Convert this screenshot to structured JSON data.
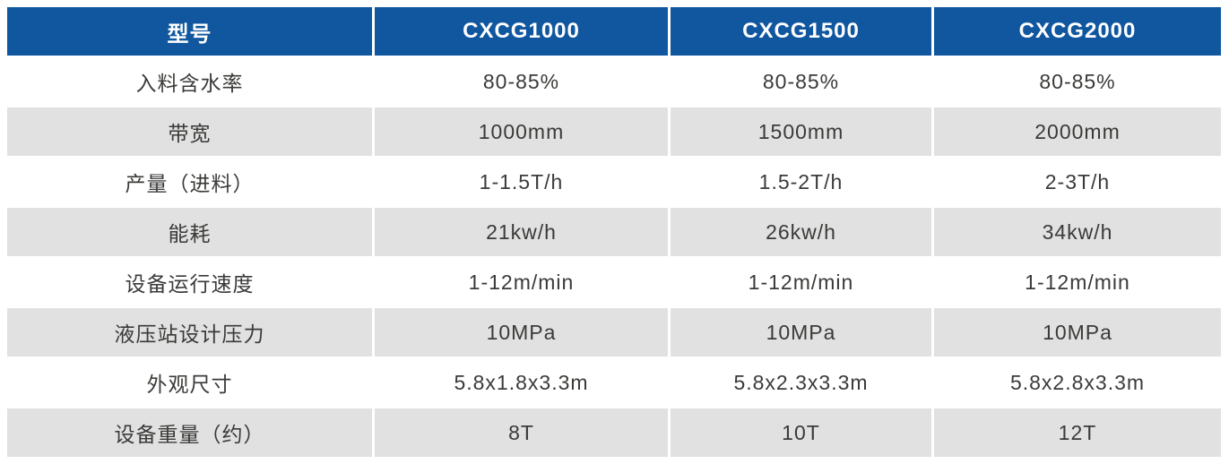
{
  "colors": {
    "header_bg": "#11579F",
    "alt_row_bg": "#E0E1E0",
    "body_text": "#3A3A38",
    "header_text": "#FFFFFF"
  },
  "table": {
    "columns": [
      "型号",
      "CXCG1000",
      "CXCG1500",
      "CXCG2000"
    ],
    "rows": [
      {
        "label": "入料含水率",
        "values": [
          "80-85%",
          "80-85%",
          "80-85%"
        ]
      },
      {
        "label": "带宽",
        "values": [
          "1000mm",
          "1500mm",
          "2000mm"
        ]
      },
      {
        "label": "产量（进料）",
        "values": [
          "1-1.5T/h",
          "1.5-2T/h",
          "2-3T/h"
        ]
      },
      {
        "label": "能耗",
        "values": [
          "21kw/h",
          "26kw/h",
          "34kw/h"
        ]
      },
      {
        "label": "设备运行速度",
        "values": [
          "1-12m/min",
          "1-12m/min",
          "1-12m/min"
        ]
      },
      {
        "label": "液压站设计压力",
        "values": [
          "10MPa",
          "10MPa",
          "10MPa"
        ]
      },
      {
        "label": "外观尺寸",
        "values": [
          "5.8x1.8x3.3m",
          "5.8x2.3x3.3m",
          "5.8x2.8x3.3m"
        ]
      },
      {
        "label": "设备重量（约）",
        "values": [
          "8T",
          "10T",
          "12T"
        ]
      }
    ]
  }
}
